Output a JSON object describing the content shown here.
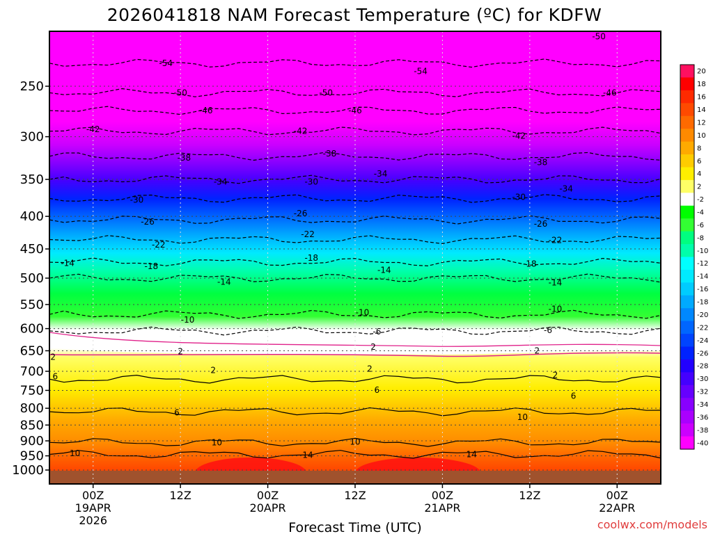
{
  "chart_data": {
    "type": "heatmap",
    "title": "2026041818 NAM Forecast Temperature (ºC) for KDFW",
    "xlabel": "Forecast Time (UTC)",
    "ylabel": "",
    "credit": "coolwx.com/models",
    "y_scale": "log",
    "ylim": [
      1000,
      200
    ],
    "y_ticks": [
      250,
      300,
      350,
      400,
      450,
      500,
      550,
      600,
      650,
      700,
      750,
      800,
      850,
      900,
      950,
      1000
    ],
    "x_ticks": [
      {
        "hour": 6,
        "lines": [
          "00Z",
          "19APR",
          "2026"
        ]
      },
      {
        "hour": 18,
        "lines": [
          "12Z"
        ]
      },
      {
        "hour": 30,
        "lines": [
          "00Z",
          "20APR"
        ]
      },
      {
        "hour": 42,
        "lines": [
          "12Z"
        ]
      },
      {
        "hour": 54,
        "lines": [
          "00Z",
          "21APR"
        ]
      },
      {
        "hour": 66,
        "lines": [
          "12Z"
        ]
      },
      {
        "hour": 78,
        "lines": [
          "00Z",
          "22APR"
        ]
      }
    ],
    "xlim": [
      0,
      84
    ],
    "grid": true,
    "colorbar": {
      "values": [
        20,
        18,
        16,
        14,
        12,
        10,
        8,
        6,
        4,
        2,
        -2,
        -4,
        -6,
        -8,
        -10,
        -12,
        -14,
        -16,
        -18,
        -20,
        -22,
        -24,
        -26,
        -28,
        -30,
        -32,
        -34,
        -36,
        -38,
        -40
      ],
      "colors": [
        "#ff1060",
        "#ff0000",
        "#ff2a00",
        "#ff4a00",
        "#ff6a00",
        "#ff8a00",
        "#ffaa00",
        "#ffcc00",
        "#ffee00",
        "#ffff66",
        "#ffffff",
        "#00ff00",
        "#33ff33",
        "#00ff80",
        "#00ffaa",
        "#00ffff",
        "#00eaff",
        "#00ccff",
        "#00aaff",
        "#0088ff",
        "#0066ff",
        "#0044ff",
        "#0022ff",
        "#2200ff",
        "#4400ff",
        "#6600ff",
        "#8800ff",
        "#aa00ff",
        "#cc00ff",
        "#ff00ff"
      ]
    },
    "contour_labels": [
      {
        "hour": 75.5,
        "p": 209,
        "text": "-50"
      },
      {
        "hour": 16,
        "p": 230,
        "text": "-54"
      },
      {
        "hour": 51,
        "p": 237,
        "text": "-54"
      },
      {
        "hour": 18,
        "p": 256,
        "text": "-50"
      },
      {
        "hour": 38,
        "p": 256,
        "text": "-50"
      },
      {
        "hour": 77,
        "p": 256,
        "text": "-46"
      },
      {
        "hour": 21.5,
        "p": 273,
        "text": "-46"
      },
      {
        "hour": 42,
        "p": 273,
        "text": "-46"
      },
      {
        "hour": 6,
        "p": 292,
        "text": "-42"
      },
      {
        "hour": 34.5,
        "p": 294,
        "text": "-42"
      },
      {
        "hour": 64.5,
        "p": 299,
        "text": "-42"
      },
      {
        "hour": 18.5,
        "p": 324,
        "text": "-38"
      },
      {
        "hour": 38.5,
        "p": 319,
        "text": "-38"
      },
      {
        "hour": 67.5,
        "p": 329,
        "text": "-38"
      },
      {
        "hour": 45.5,
        "p": 343,
        "text": "-34"
      },
      {
        "hour": 23.5,
        "p": 353,
        "text": "-34"
      },
      {
        "hour": 71,
        "p": 362,
        "text": "-34"
      },
      {
        "hour": 36,
        "p": 353,
        "text": "-30"
      },
      {
        "hour": 12,
        "p": 377,
        "text": "-30"
      },
      {
        "hour": 64.5,
        "p": 373,
        "text": "-30"
      },
      {
        "hour": 34.5,
        "p": 396,
        "text": "-26"
      },
      {
        "hour": 13.5,
        "p": 408,
        "text": "-26"
      },
      {
        "hour": 67.5,
        "p": 411,
        "text": "-26"
      },
      {
        "hour": 35.5,
        "p": 427,
        "text": "-22"
      },
      {
        "hour": 15,
        "p": 443,
        "text": "-22"
      },
      {
        "hour": 69.5,
        "p": 436,
        "text": "-22"
      },
      {
        "hour": 36,
        "p": 465,
        "text": "-18"
      },
      {
        "hour": 14,
        "p": 479,
        "text": "-18"
      },
      {
        "hour": 66,
        "p": 475,
        "text": "-18"
      },
      {
        "hour": 2.5,
        "p": 474,
        "text": "-14"
      },
      {
        "hour": 46,
        "p": 486,
        "text": "-14"
      },
      {
        "hour": 24,
        "p": 507,
        "text": "-14"
      },
      {
        "hour": 69.5,
        "p": 508,
        "text": "-14"
      },
      {
        "hour": 43,
        "p": 566,
        "text": "-10"
      },
      {
        "hour": 19,
        "p": 581,
        "text": "-10"
      },
      {
        "hour": 69.5,
        "p": 559,
        "text": "-10"
      },
      {
        "hour": 45,
        "p": 607,
        "text": "-6"
      },
      {
        "hour": 68.5,
        "p": 604,
        "text": "-6"
      },
      {
        "hour": 44.5,
        "p": 641,
        "text": "2"
      },
      {
        "hour": 18,
        "p": 652,
        "text": "2"
      },
      {
        "hour": 67,
        "p": 650,
        "text": "2"
      },
      {
        "hour": 0.5,
        "p": 665,
        "text": "2"
      },
      {
        "hour": 22.5,
        "p": 697,
        "text": "2"
      },
      {
        "hour": 44,
        "p": 694,
        "text": "2"
      },
      {
        "hour": 69.5,
        "p": 710,
        "text": "2"
      },
      {
        "hour": 0.8,
        "p": 713,
        "text": "6"
      },
      {
        "hour": 45,
        "p": 749,
        "text": "6"
      },
      {
        "hour": 17.5,
        "p": 813,
        "text": "6"
      },
      {
        "hour": 72,
        "p": 765,
        "text": "6"
      },
      {
        "hour": 65,
        "p": 826,
        "text": "10"
      },
      {
        "hour": 23,
        "p": 906,
        "text": "10"
      },
      {
        "hour": 42,
        "p": 903,
        "text": "10"
      },
      {
        "hour": 3.5,
        "p": 941,
        "text": "10"
      },
      {
        "hour": 35.5,
        "p": 948,
        "text": "14"
      },
      {
        "hour": 58,
        "p": 945,
        "text": "14"
      }
    ]
  }
}
